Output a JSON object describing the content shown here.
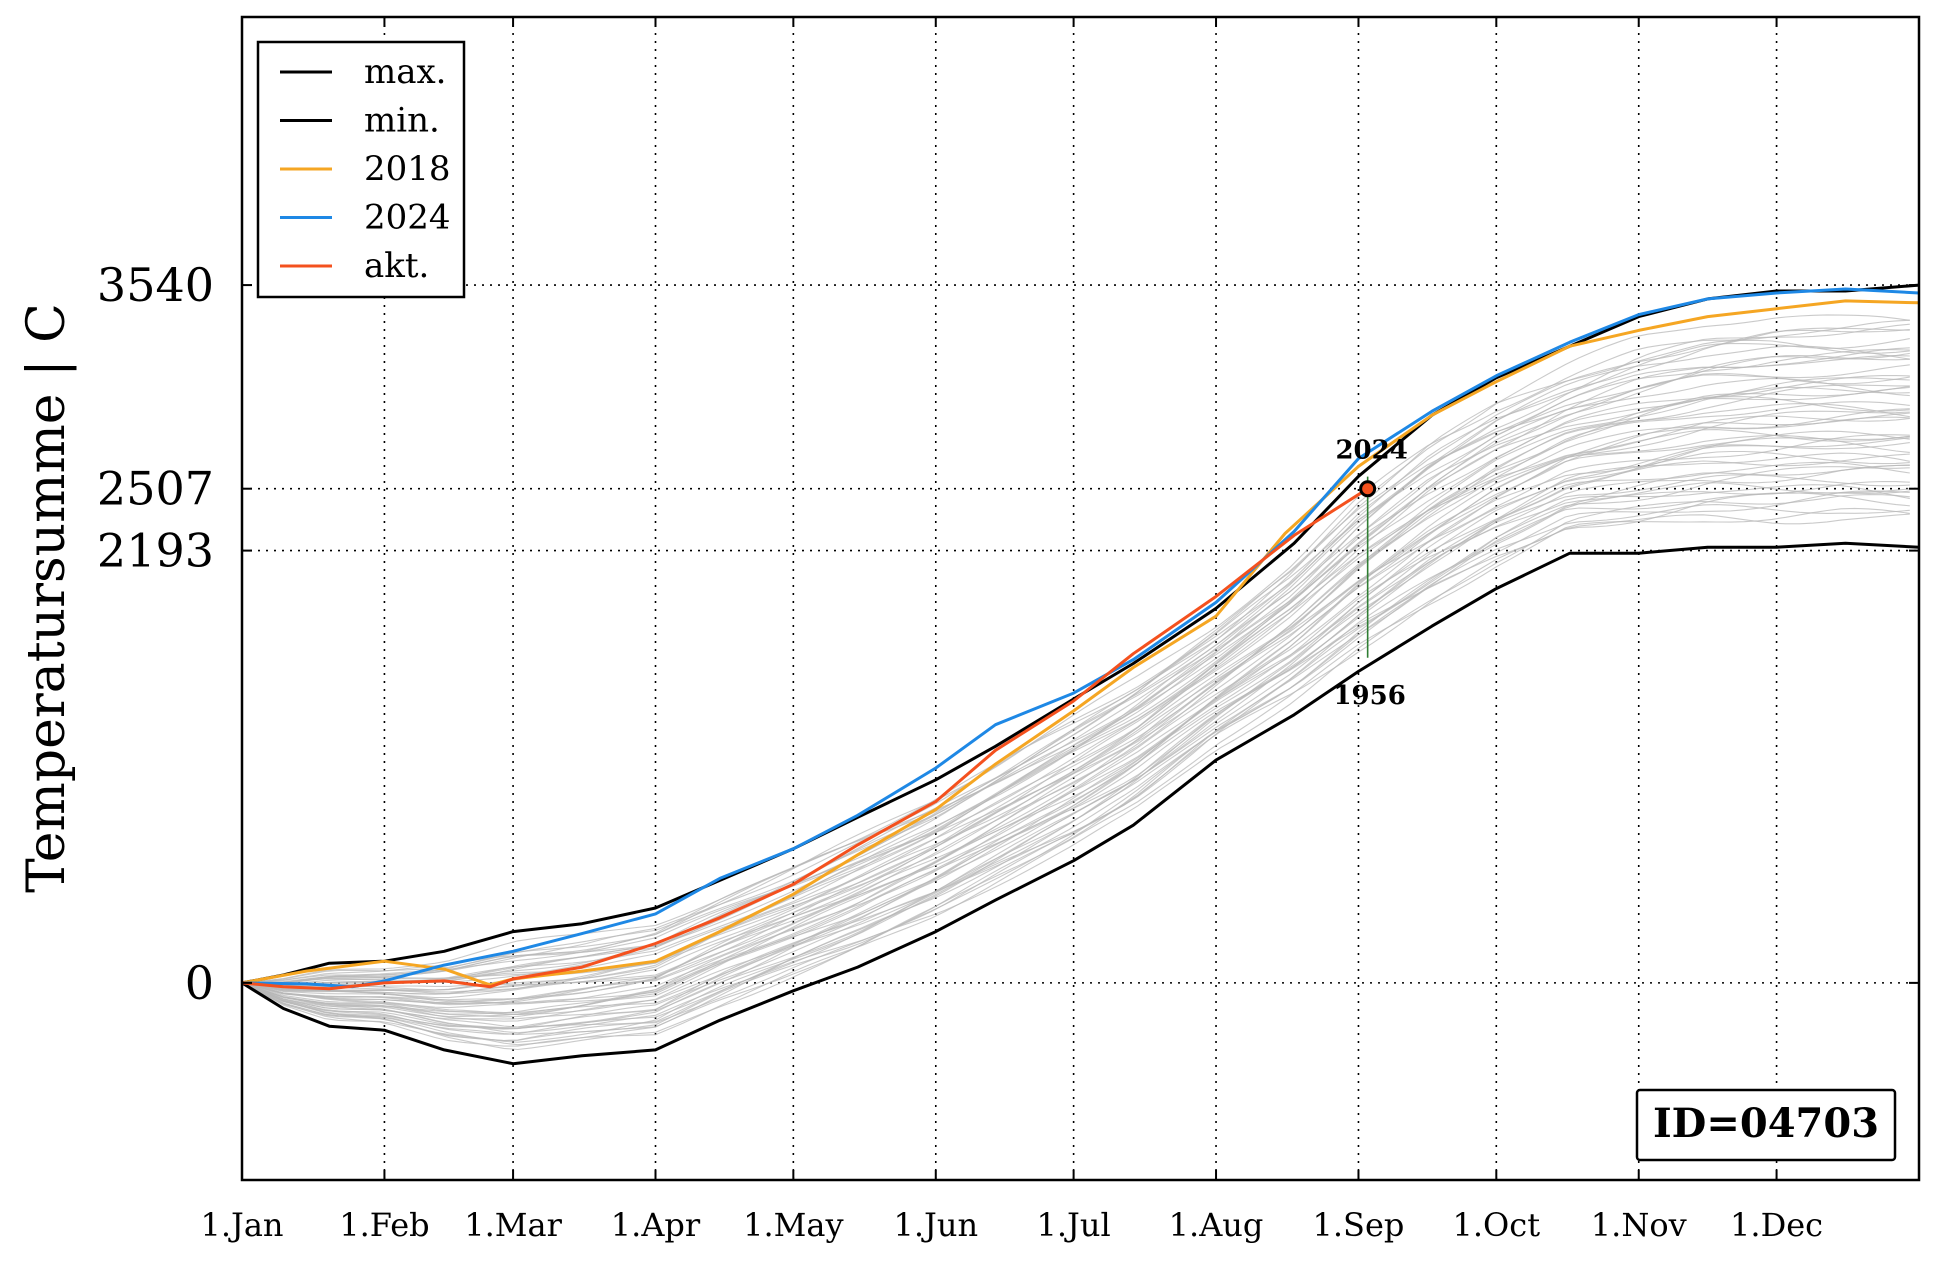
{
  "chart_data": {
    "type": "line",
    "title": "",
    "ylabel": "Temperatursumme | C",
    "xlabel": "",
    "x_unit": "day of year",
    "xlim": [
      1,
      366
    ],
    "ylim": [
      -1000,
      4900
    ],
    "grid": true,
    "legend_position": "top-left",
    "x_ticks": [
      {
        "day": 1,
        "label": "1.Jan"
      },
      {
        "day": 32,
        "label": "1.Feb"
      },
      {
        "day": 60,
        "label": "1.Mar"
      },
      {
        "day": 91,
        "label": "1.Apr"
      },
      {
        "day": 121,
        "label": "1.May"
      },
      {
        "day": 152,
        "label": "1.Jun"
      },
      {
        "day": 182,
        "label": "1.Jul"
      },
      {
        "day": 213,
        "label": "1.Aug"
      },
      {
        "day": 244,
        "label": "1.Sep"
      },
      {
        "day": 274,
        "label": "1.Oct"
      },
      {
        "day": 305,
        "label": "1.Nov"
      },
      {
        "day": 335,
        "label": "1.Dec"
      }
    ],
    "y_ticks": [
      {
        "value": 0,
        "label": "0"
      },
      {
        "value": 2193,
        "label": "2193"
      },
      {
        "value": 2507,
        "label": "2507"
      },
      {
        "value": 3540,
        "label": "3540"
      }
    ],
    "series": [
      {
        "name": "max.",
        "color": "#000000",
        "x": [
          1,
          10,
          20,
          32,
          45,
          60,
          75,
          91,
          105,
          121,
          135,
          152,
          165,
          182,
          195,
          213,
          230,
          244,
          260,
          274,
          290,
          305,
          320,
          335,
          350,
          366
        ],
        "y": [
          0,
          40,
          100,
          110,
          160,
          260,
          300,
          380,
          520,
          680,
          840,
          1030,
          1200,
          1440,
          1620,
          1900,
          2230,
          2570,
          2880,
          3070,
          3230,
          3380,
          3470,
          3510,
          3510,
          3540
        ]
      },
      {
        "name": "min.",
        "color": "#000000",
        "x": [
          1,
          10,
          20,
          32,
          45,
          60,
          75,
          91,
          105,
          121,
          135,
          152,
          165,
          182,
          195,
          213,
          230,
          244,
          260,
          274,
          290,
          305,
          320,
          335,
          350,
          366
        ],
        "y": [
          0,
          -130,
          -220,
          -240,
          -340,
          -410,
          -370,
          -340,
          -190,
          -40,
          80,
          260,
          420,
          620,
          800,
          1130,
          1360,
          1580,
          1810,
          2000,
          2180,
          2180,
          2210,
          2210,
          2230,
          2210
        ]
      },
      {
        "name": "2018",
        "color": "#F5A623",
        "x": [
          1,
          15,
          32,
          45,
          55,
          60,
          75,
          91,
          105,
          121,
          135,
          152,
          165,
          182,
          195,
          213,
          228,
          244,
          260,
          274,
          290,
          305,
          320,
          335,
          350,
          366
        ],
        "y": [
          0,
          60,
          110,
          70,
          -10,
          20,
          60,
          110,
          260,
          450,
          650,
          880,
          1110,
          1380,
          1600,
          1860,
          2280,
          2620,
          2880,
          3050,
          3230,
          3310,
          3380,
          3420,
          3460,
          3450
        ]
      },
      {
        "name": "2024",
        "color": "#1E88E5",
        "x": [
          1,
          15,
          25,
          32,
          45,
          60,
          75,
          91,
          105,
          121,
          135,
          152,
          165,
          182,
          195,
          213,
          230,
          244,
          260,
          274,
          290,
          305,
          320,
          335,
          350,
          366
        ],
        "y": [
          0,
          -5,
          -20,
          10,
          90,
          160,
          250,
          350,
          530,
          680,
          850,
          1090,
          1310,
          1470,
          1640,
          1930,
          2290,
          2660,
          2900,
          3080,
          3250,
          3390,
          3470,
          3500,
          3520,
          3500
        ]
      },
      {
        "name": "akt.",
        "color": "#F4511E",
        "x": [
          1,
          10,
          20,
          32,
          45,
          55,
          60,
          75,
          91,
          105,
          121,
          135,
          152,
          165,
          182,
          195,
          213,
          230,
          246
        ],
        "y": [
          0,
          -20,
          -30,
          0,
          10,
          -20,
          20,
          80,
          200,
          330,
          500,
          700,
          920,
          1180,
          1430,
          1670,
          1960,
          2270,
          2507
        ]
      }
    ],
    "annotations": {
      "current_point": {
        "day": 246,
        "value": 2507
      },
      "max_year_label": "2024",
      "min_year_label": "1956"
    },
    "station_id": "ID=04703"
  }
}
